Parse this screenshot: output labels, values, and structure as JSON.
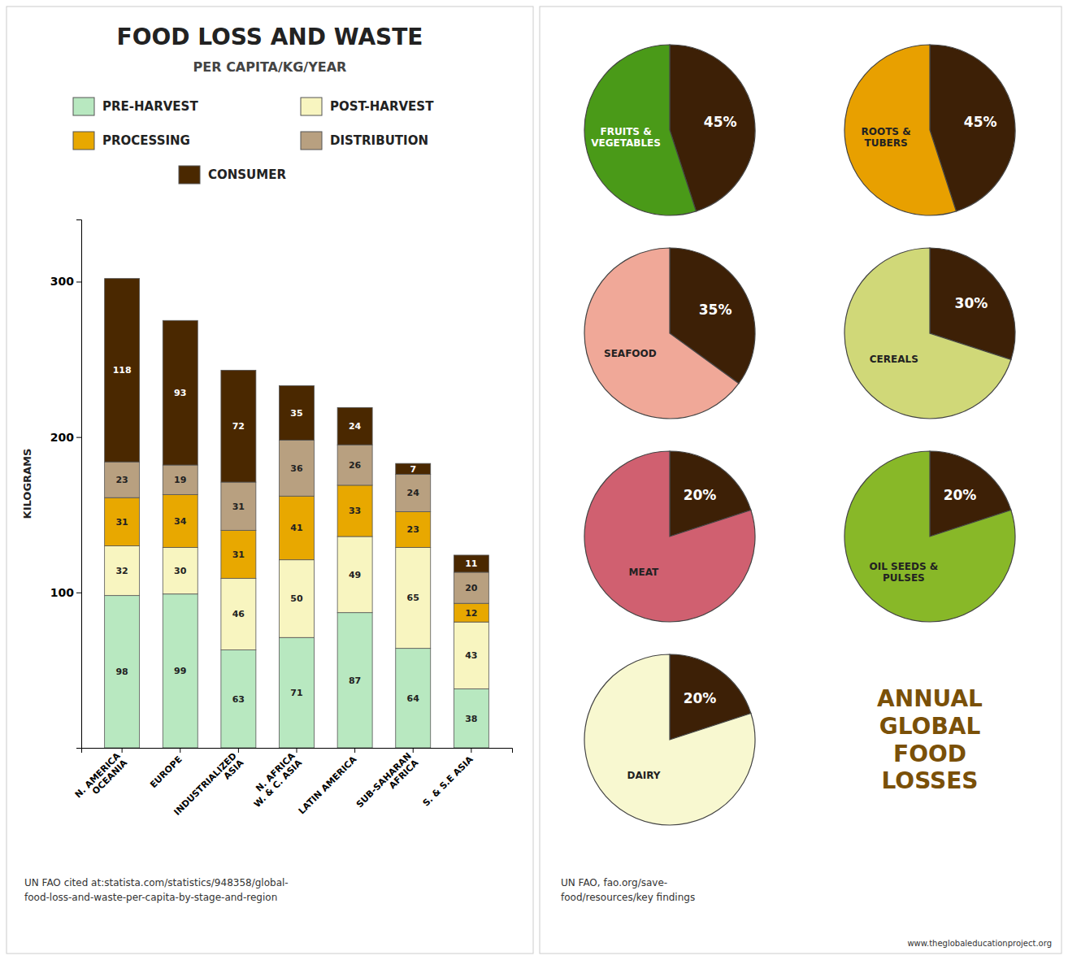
{
  "chart_data": [
    {
      "type": "bar",
      "title": "FOOD LOSS AND WASTE",
      "subtitle": "PER CAPITA/KG/YEAR",
      "ylabel": "KILOGRAMS",
      "categories": [
        "N. AMERICA\nOCEANIA",
        "EUROPE",
        "INDUSTRIALIZED\nASIA",
        "N. AFRICA\nW. & C. ASIA",
        "LATIN AMERICA",
        "SUB-SAHARAN\nAFRICA",
        "S. & S.E ASIA"
      ],
      "series": [
        {
          "name": "PRE-HARVEST",
          "color": "#b8e8c0",
          "values": [
            98,
            99,
            63,
            71,
            87,
            64,
            38
          ]
        },
        {
          "name": "POST-HARVEST",
          "color": "#f8f5c0",
          "values": [
            32,
            30,
            46,
            50,
            49,
            65,
            43
          ]
        },
        {
          "name": "PROCESSING",
          "color": "#e8a800",
          "values": [
            31,
            34,
            31,
            41,
            33,
            23,
            12
          ]
        },
        {
          "name": "DISTRIBUTION",
          "color": "#b8a080",
          "values": [
            23,
            19,
            31,
            36,
            26,
            24,
            20
          ]
        },
        {
          "name": "CONSUMER",
          "color": "#4a2800",
          "values": [
            118,
            93,
            72,
            35,
            24,
            7,
            11
          ]
        }
      ],
      "ylim": [
        0,
        340
      ],
      "yticks": [
        100,
        200,
        300
      ],
      "stacked": true,
      "data_labels": true,
      "legend": "top",
      "grid": false,
      "annotations": [
        "UN FAO cited at:statista.com/statistics/948358/global-\nfood-loss-and-waste-per-capita-by-stage-and-region",
        "ANNUAL\nGLOBAL\nFOOD\nLOSSES",
        "UN FAO, fao.org/save-\nfood/resources/key findings",
        "www.theglobaleducationproject.org"
      ]
    },
    {
      "type": "pie",
      "categories": [
        null,
        "FRUITS &\nVEGETABLES"
      ],
      "values": [
        45,
        55
      ],
      "value_labels": [
        "45%",
        null
      ],
      "colors": [
        "#3d2006",
        "#4a9a18"
      ],
      "data_labels": true
    },
    {
      "type": "pie",
      "categories": [
        null,
        "ROOTS &\nTUBERS"
      ],
      "values": [
        45,
        55
      ],
      "value_labels": [
        "45%",
        null
      ],
      "colors": [
        "#3d2006",
        "#e8a000"
      ],
      "data_labels": true
    },
    {
      "type": "pie",
      "categories": [
        null,
        "SEAFOOD"
      ],
      "values": [
        35,
        65
      ],
      "value_labels": [
        "35%",
        null
      ],
      "colors": [
        "#3d2006",
        "#f0a898"
      ],
      "data_labels": true
    },
    {
      "type": "pie",
      "categories": [
        null,
        "CEREALS"
      ],
      "values": [
        30,
        70
      ],
      "value_labels": [
        "30%",
        null
      ],
      "colors": [
        "#3d2006",
        "#d0d878"
      ],
      "data_labels": true
    },
    {
      "type": "pie",
      "categories": [
        null,
        "MEAT"
      ],
      "values": [
        20,
        80
      ],
      "value_labels": [
        "20%",
        null
      ],
      "colors": [
        "#3d2006",
        "#d06070"
      ],
      "data_labels": true
    },
    {
      "type": "pie",
      "categories": [
        null,
        "OIL SEEDS &\nPULSES"
      ],
      "values": [
        20,
        80
      ],
      "value_labels": [
        "20%",
        null
      ],
      "colors": [
        "#3d2006",
        "#88b828"
      ],
      "data_labels": true
    },
    {
      "type": "pie",
      "categories": [
        null,
        "DAIRY"
      ],
      "values": [
        20,
        80
      ],
      "value_labels": [
        "20%",
        null
      ],
      "colors": [
        "#3d2006",
        "#f8f8d0"
      ],
      "data_labels": true
    }
  ]
}
